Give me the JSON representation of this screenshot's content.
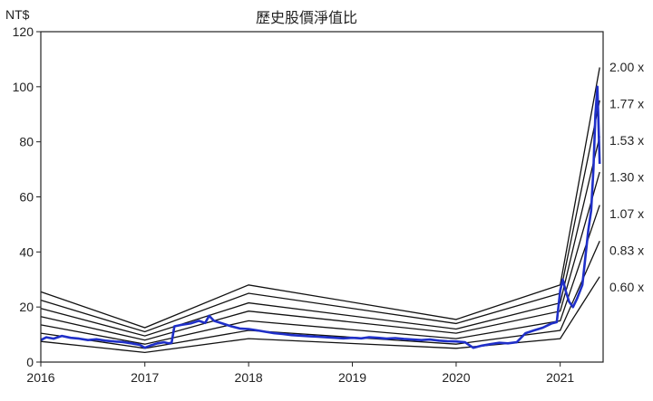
{
  "chart_data": {
    "type": "line",
    "title": "歷史股價淨值比",
    "ylabel": "NT$",
    "xlabel": "",
    "ylim": [
      0,
      120
    ],
    "y_ticks": [
      0,
      20,
      40,
      60,
      80,
      100,
      120
    ],
    "x_ticks": [
      "2016",
      "2017",
      "2018",
      "2019",
      "2020",
      "2021"
    ],
    "x_range": [
      "2016-01-01",
      "2021-06-01"
    ],
    "grid": false,
    "band_lines": [
      {
        "label": "2.00 x",
        "points": [
          [
            "2016-01-01",
            25.5
          ],
          [
            "2017-01-01",
            12.5
          ],
          [
            "2018-01-01",
            28
          ],
          [
            "2020-01-01",
            15.5
          ],
          [
            "2021-01-01",
            28
          ],
          [
            "2021-05-20",
            107
          ]
        ]
      },
      {
        "label": "1.77 x",
        "points": [
          [
            "2016-01-01",
            22.5
          ],
          [
            "2017-01-01",
            11.0
          ],
          [
            "2018-01-01",
            25
          ],
          [
            "2020-01-01",
            14.0
          ],
          [
            "2021-01-01",
            25
          ],
          [
            "2021-05-20",
            95
          ]
        ]
      },
      {
        "label": "1.53 x",
        "points": [
          [
            "2016-01-01",
            19.5
          ],
          [
            "2017-01-01",
            9.5
          ],
          [
            "2018-01-01",
            21.5
          ],
          [
            "2020-01-01",
            12.0
          ],
          [
            "2021-01-01",
            21.5
          ],
          [
            "2021-05-20",
            82
          ]
        ]
      },
      {
        "label": "1.30 x",
        "points": [
          [
            "2016-01-01",
            16.5
          ],
          [
            "2017-01-01",
            8.0
          ],
          [
            "2018-01-01",
            18.5
          ],
          [
            "2020-01-01",
            10.5
          ],
          [
            "2021-01-01",
            18.5
          ],
          [
            "2021-05-20",
            69
          ]
        ]
      },
      {
        "label": "1.07 x",
        "points": [
          [
            "2016-01-01",
            13.5
          ],
          [
            "2017-01-01",
            6.5
          ],
          [
            "2018-01-01",
            15
          ],
          [
            "2020-01-01",
            8.5
          ],
          [
            "2021-01-01",
            15
          ],
          [
            "2021-05-20",
            57
          ]
        ]
      },
      {
        "label": "0.83 x",
        "points": [
          [
            "2016-01-01",
            10.5
          ],
          [
            "2017-01-01",
            5.0
          ],
          [
            "2018-01-01",
            11.5
          ],
          [
            "2020-01-01",
            6.5
          ],
          [
            "2021-01-01",
            11.5
          ],
          [
            "2021-05-20",
            44
          ]
        ]
      },
      {
        "label": "0.60 x",
        "points": [
          [
            "2016-01-01",
            7.5
          ],
          [
            "2017-01-01",
            3.5
          ],
          [
            "2018-01-01",
            8.5
          ],
          [
            "2020-01-01",
            5.0
          ],
          [
            "2021-01-01",
            8.5
          ],
          [
            "2021-05-20",
            31
          ]
        ]
      }
    ],
    "series": [
      {
        "color": "#1f2fc8",
        "points": [
          [
            "2016-01-01",
            8.0
          ],
          [
            "2016-01-20",
            9.0
          ],
          [
            "2016-02-15",
            8.5
          ],
          [
            "2016-03-15",
            9.5
          ],
          [
            "2016-04-15",
            8.8
          ],
          [
            "2016-05-15",
            8.5
          ],
          [
            "2016-06-15",
            8.0
          ],
          [
            "2016-07-15",
            8.3
          ],
          [
            "2016-08-15",
            7.8
          ],
          [
            "2016-09-15",
            7.5
          ],
          [
            "2016-10-15",
            7.3
          ],
          [
            "2016-11-15",
            6.8
          ],
          [
            "2016-12-15",
            6.2
          ],
          [
            "2017-01-01",
            5.2
          ],
          [
            "2017-01-20",
            6.0
          ],
          [
            "2017-02-15",
            6.8
          ],
          [
            "2017-03-10",
            7.2
          ],
          [
            "2017-03-25",
            6.8
          ],
          [
            "2017-04-05",
            7.0
          ],
          [
            "2017-04-15",
            13.0
          ],
          [
            "2017-05-10",
            13.5
          ],
          [
            "2017-06-10",
            14.0
          ],
          [
            "2017-07-10",
            15.0
          ],
          [
            "2017-08-01",
            14.2
          ],
          [
            "2017-08-15",
            16.8
          ],
          [
            "2017-09-01",
            15.0
          ],
          [
            "2017-10-01",
            14.0
          ],
          [
            "2017-11-01",
            13.0
          ],
          [
            "2017-12-01",
            12.2
          ],
          [
            "2018-01-01",
            12.0
          ],
          [
            "2018-02-01",
            11.5
          ],
          [
            "2018-03-01",
            11.0
          ],
          [
            "2018-04-01",
            10.5
          ],
          [
            "2018-05-01",
            10.2
          ],
          [
            "2018-06-01",
            9.8
          ],
          [
            "2018-07-01",
            9.6
          ],
          [
            "2018-08-01",
            9.4
          ],
          [
            "2018-09-01",
            9.2
          ],
          [
            "2018-10-01",
            9.0
          ],
          [
            "2018-11-01",
            8.8
          ],
          [
            "2018-12-01",
            8.6
          ],
          [
            "2019-01-01",
            8.8
          ],
          [
            "2019-02-01",
            8.6
          ],
          [
            "2019-03-01",
            9.0
          ],
          [
            "2019-04-01",
            8.8
          ],
          [
            "2019-05-01",
            8.5
          ],
          [
            "2019-06-01",
            8.7
          ],
          [
            "2019-07-01",
            8.4
          ],
          [
            "2019-08-01",
            8.2
          ],
          [
            "2019-09-01",
            8.0
          ],
          [
            "2019-10-01",
            8.2
          ],
          [
            "2019-11-01",
            7.8
          ],
          [
            "2019-12-01",
            7.6
          ],
          [
            "2020-01-01",
            7.5
          ],
          [
            "2020-02-01",
            7.2
          ],
          [
            "2020-03-01",
            5.2
          ],
          [
            "2020-04-01",
            6.0
          ],
          [
            "2020-05-01",
            6.5
          ],
          [
            "2020-06-01",
            7.0
          ],
          [
            "2020-07-01",
            6.8
          ],
          [
            "2020-08-01",
            7.2
          ],
          [
            "2020-09-01",
            10.5
          ],
          [
            "2020-10-01",
            11.5
          ],
          [
            "2020-11-01",
            12.5
          ],
          [
            "2020-12-01",
            14.0
          ],
          [
            "2020-12-20",
            14.5
          ],
          [
            "2021-01-01",
            26.0
          ],
          [
            "2021-01-10",
            30.0
          ],
          [
            "2021-01-20",
            26.0
          ],
          [
            "2021-02-01",
            22.0
          ],
          [
            "2021-02-15",
            20.0
          ],
          [
            "2021-03-01",
            23.0
          ],
          [
            "2021-03-20",
            28.0
          ],
          [
            "2021-04-10",
            48.0
          ],
          [
            "2021-04-20",
            55.0
          ],
          [
            "2021-04-28",
            70.0
          ],
          [
            "2021-05-05",
            90.0
          ],
          [
            "2021-05-12",
            100.0
          ],
          [
            "2021-05-20",
            72.0
          ]
        ]
      }
    ]
  }
}
